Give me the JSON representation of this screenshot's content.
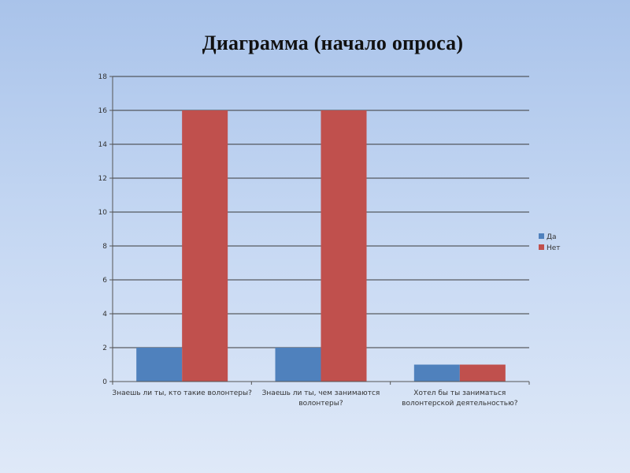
{
  "title": "Диаграмма (начало опроса)",
  "colors": {
    "series_yes": "#4f81bd",
    "series_no": "#c0504d",
    "gridline": "#3a3a3a",
    "axis": "#555555"
  },
  "chart_data": {
    "type": "bar",
    "title": "",
    "xlabel": "",
    "ylabel": "",
    "ylim": [
      0,
      18
    ],
    "yticks": [
      0,
      2,
      4,
      6,
      8,
      10,
      12,
      14,
      16,
      18
    ],
    "grid": true,
    "legend_position": "right",
    "categories": [
      [
        "Знаешь ли ты, кто такие волонтеры?"
      ],
      [
        "Знаешь ли ты, чем занимаются",
        "волонтеры?"
      ],
      [
        "Хотел бы ты заниматься",
        "волонтерской деятельностью?"
      ]
    ],
    "series": [
      {
        "name": "Да",
        "values": [
          2,
          2,
          1
        ]
      },
      {
        "name": "Нет",
        "values": [
          16,
          16,
          1
        ]
      }
    ]
  }
}
